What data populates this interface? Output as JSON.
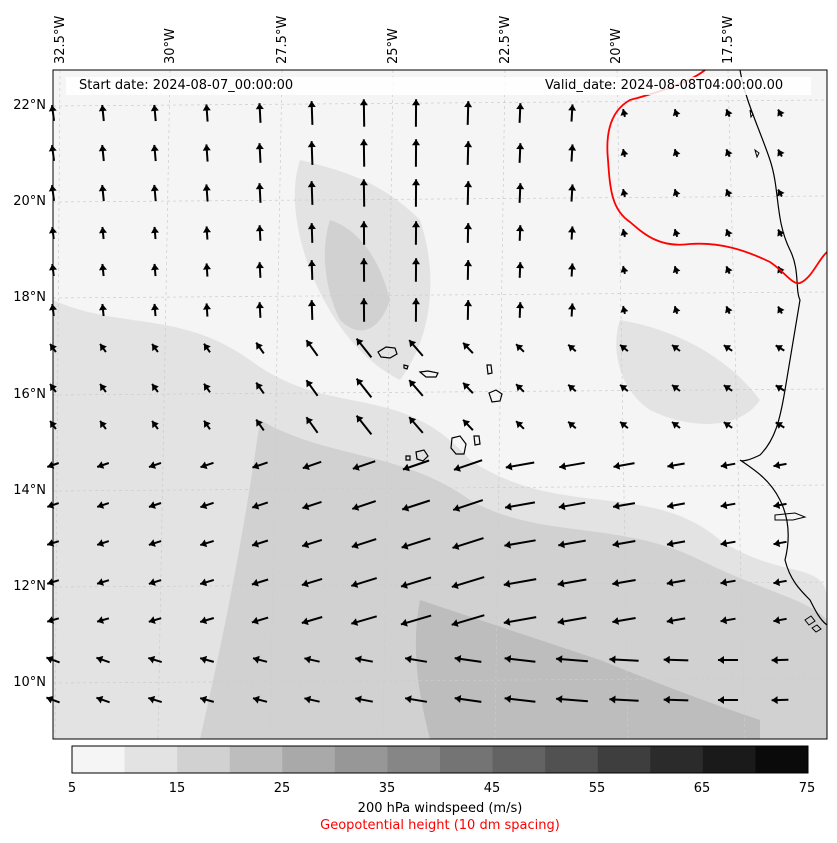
{
  "header": {
    "start_date": "Start date: 2024-08-07_00:00:00",
    "valid_date": "Valid_date: 2024-08-08T04:00:00.00"
  },
  "axes": {
    "longitude_labels": [
      "32.5°W",
      "30°W",
      "27.5°W",
      "25°W",
      "22.5°W",
      "20°W",
      "17.5°W"
    ],
    "latitude_labels": [
      "22°N",
      "20°N",
      "18°N",
      "16°N",
      "14°N",
      "12°N",
      "10°N"
    ]
  },
  "colorbar": {
    "ticks": [
      "5",
      "15",
      "25",
      "35",
      "45",
      "55",
      "65",
      "75"
    ],
    "colors": [
      "#f5f5f5",
      "#e3e3e3",
      "#d1d1d1",
      "#bdbdbd",
      "#a9a9a9",
      "#979797",
      "#868686",
      "#747474",
      "#636363",
      "#515151",
      "#3e3e3e",
      "#2b2b2b",
      "#1a1a1a",
      "#0a0a0a"
    ],
    "title": "200 hPa windspeed (m/s)",
    "subtitle": "Geopotential height (10 dm spacing)",
    "subtitle_color": "#ff0000"
  },
  "colors": {
    "contour_line": "#ff0000",
    "coastline": "#000000",
    "wind_vector": "#000000"
  }
}
